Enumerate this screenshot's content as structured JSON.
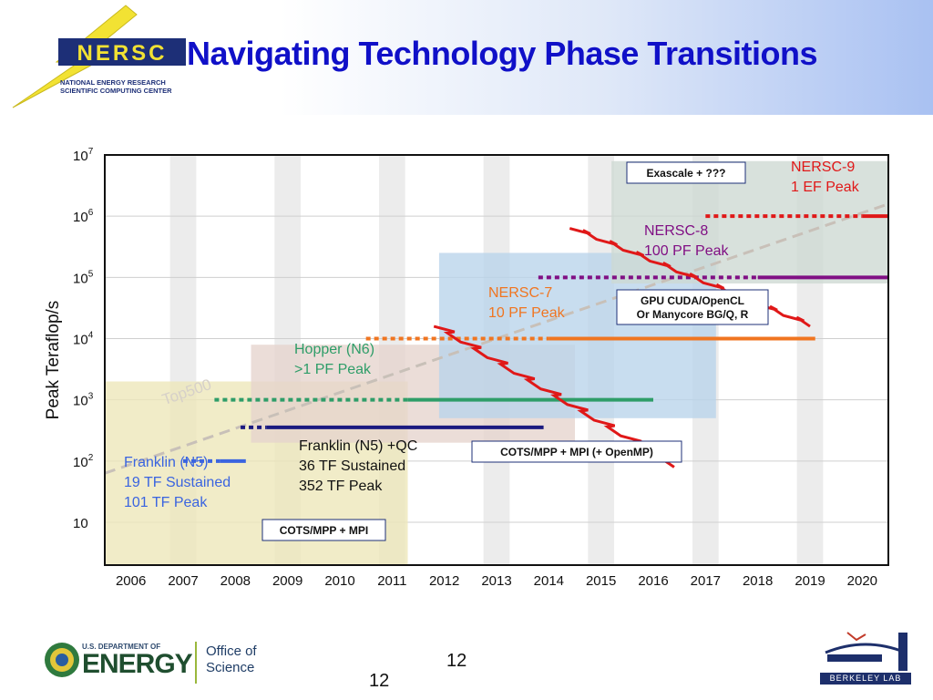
{
  "slide": {
    "title": "Navigating Technology Phase Transitions",
    "logo_text": "NERSC",
    "logo_subtitle": [
      "NATIONAL ENERGY RESEARCH",
      "SCIENTIFIC COMPUTING CENTER"
    ],
    "page_number": "12",
    "footer_left": {
      "line1": "U.S. DEPARTMENT OF",
      "line2": "ENERGY",
      "office": "Office of Science"
    },
    "footer_right": "BERKELEY LAB"
  },
  "chart_data": {
    "type": "timeline",
    "ylabel": "Peak Teraflop/s",
    "y_scale": "log10",
    "ylim_exp": [
      0.3,
      7
    ],
    "xlim": [
      2005.5,
      2020.5
    ],
    "x_ticks": [
      "2006",
      "2007",
      "2008",
      "2009",
      "2010",
      "2011",
      "2012",
      "2013",
      "2014",
      "2015",
      "2016",
      "2017",
      "2018",
      "2019",
      "2020"
    ],
    "y_ticks": [
      {
        "exp": 7,
        "base": "10",
        "sup": "7"
      },
      {
        "exp": 6,
        "base": "10",
        "sup": "6"
      },
      {
        "exp": 5,
        "base": "10",
        "sup": "5"
      },
      {
        "exp": 4,
        "base": "10",
        "sup": "4"
      },
      {
        "exp": 3,
        "base": "10",
        "sup": "3"
      },
      {
        "exp": 2,
        "base": "10",
        "sup": "2"
      },
      {
        "exp": 1,
        "base": "10",
        "sup": ""
      }
    ],
    "era_boxes": [
      {
        "label": "COTS/MPP + MPI",
        "x": [
          2005.5,
          2011.3
        ],
        "exp": [
          0.3,
          3.3
        ],
        "color": "#ede7b8"
      },
      {
        "label": "COTS/MPP + MPI (+ OpenMP)",
        "x": [
          2008.3,
          2014.5
        ],
        "exp": [
          2.3,
          3.9
        ],
        "color": "#e6d3cd"
      },
      {
        "label": "GPU CUDA/OpenCL\nOr Manycore BG/Q, R",
        "x": [
          2011.9,
          2017.2
        ],
        "exp": [
          2.7,
          5.4
        ],
        "color": "#b9d3ea"
      },
      {
        "label": "Exascale + ???",
        "x": [
          2015.2,
          2020.5
        ],
        "exp": [
          4.9,
          6.9
        ],
        "color": "#cdd9d2"
      }
    ],
    "top500_trend": {
      "label": "Top500",
      "x": [
        2005.5,
        2020.5
      ],
      "exp": [
        1.8,
        6.2
      ]
    },
    "systems": [
      {
        "name": "Franklin (N5)",
        "lines": [
          "Franklin (N5)",
          "19 TF Sustained",
          "101 TF Peak"
        ],
        "color": "#3a64e0",
        "dotted_x": [
          2007.0,
          2007.7
        ],
        "solid_x": [
          2007.7,
          2008.2
        ],
        "exp": 2.0
      },
      {
        "name": "Franklin (N5) +QC",
        "lines": [
          "Franklin (N5) +QC",
          "36 TF Sustained",
          "352 TF Peak"
        ],
        "color": "#1b1a80",
        "dotted_x": [
          2008.1,
          2008.6
        ],
        "solid_x": [
          2008.6,
          2013.9
        ],
        "exp": 2.55
      },
      {
        "name": "Hopper (N6)",
        "lines": [
          "Hopper (N6)",
          ">1 PF Peak"
        ],
        "color": "#2e9d68",
        "dotted_x": [
          2007.6,
          2011.3
        ],
        "solid_x": [
          2011.3,
          2016.0
        ],
        "exp": 3.0
      },
      {
        "name": "NERSC-7",
        "lines": [
          "NERSC-7",
          "10 PF Peak"
        ],
        "color": "#f07520",
        "dotted_x": [
          2010.5,
          2014.0
        ],
        "solid_x": [
          2014.0,
          2019.1
        ],
        "exp": 4.0
      },
      {
        "name": "NERSC-8",
        "lines": [
          "NERSC-8",
          "100 PF Peak"
        ],
        "color": "#800f84",
        "dotted_x": [
          2013.8,
          2018.0
        ],
        "solid_x": [
          2018.0,
          2020.5
        ],
        "exp": 5.0
      },
      {
        "name": "NERSC-9",
        "lines": [
          "NERSC-9",
          "1 EF Peak"
        ],
        "color": "#e01818",
        "dotted_x": [
          2017.0,
          2020.0
        ],
        "solid_x": [
          2020.0,
          2020.5
        ],
        "exp": 6.0
      }
    ],
    "transition_zigzags": [
      {
        "x": [
          2011.8,
          2016.4
        ],
        "exp": [
          4.2,
          1.9
        ]
      },
      {
        "x": [
          2014.4,
          2019.0
        ],
        "exp": [
          5.8,
          4.2
        ]
      }
    ],
    "grid": "vertical-bands"
  }
}
